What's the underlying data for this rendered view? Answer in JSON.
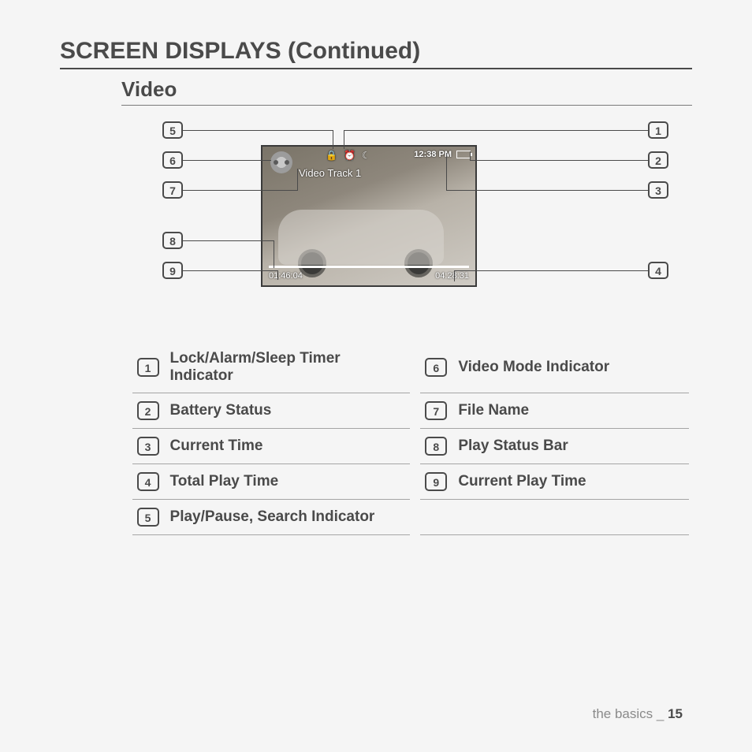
{
  "mainTitle": "SCREEN DISPLAYS (Continued)",
  "subTitle": "Video",
  "screen": {
    "trackName": "Video Track 1",
    "clock": "12:38 PM",
    "elapsed": "01:46:04",
    "total": "04:28:31"
  },
  "legend": {
    "left": [
      {
        "n": "1",
        "t": "Lock/Alarm/Sleep Timer Indicator"
      },
      {
        "n": "2",
        "t": "Battery Status"
      },
      {
        "n": "3",
        "t": "Current Time"
      },
      {
        "n": "4",
        "t": "Total Play Time"
      },
      {
        "n": "5",
        "t": "Play/Pause, Search Indicator"
      }
    ],
    "right": [
      {
        "n": "6",
        "t": "Video Mode Indicator"
      },
      {
        "n": "7",
        "t": "File Name"
      },
      {
        "n": "8",
        "t": "Play Status Bar"
      },
      {
        "n": "9",
        "t": "Current Play Time"
      },
      {
        "n": "",
        "t": ""
      }
    ]
  },
  "footer": {
    "section": "the basics",
    "sep": " _ ",
    "page": "15"
  }
}
